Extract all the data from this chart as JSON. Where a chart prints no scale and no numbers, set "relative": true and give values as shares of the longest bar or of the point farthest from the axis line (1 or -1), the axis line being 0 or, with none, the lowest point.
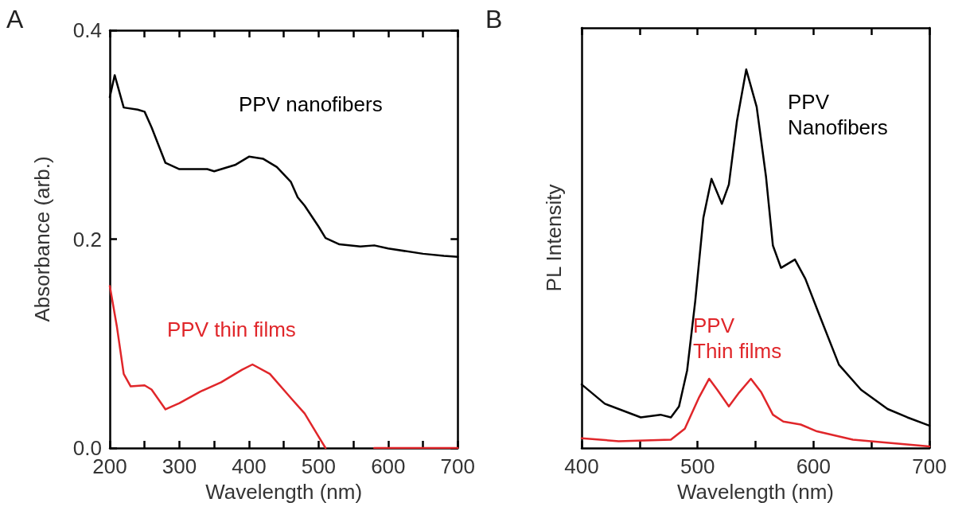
{
  "chart_data": [
    {
      "type": "line",
      "annotations": [
        "A"
      ],
      "xlabel": "Wavelength (nm)",
      "ylabel": "Absorbance (arb.)",
      "xlim": [
        200,
        700
      ],
      "xticks": [
        200,
        {
          "value": 250,
          "label": null
        },
        300,
        {
          "value": 350,
          "label": null
        },
        400,
        {
          "value": 450,
          "label": null
        },
        500,
        {
          "value": 550,
          "label": null
        },
        600,
        {
          "value": 650,
          "label": null
        },
        700
      ],
      "ylim": [
        0,
        0.4
      ],
      "yticks": [
        {
          "value": 0,
          "label": "0.0"
        },
        {
          "value": 0.2,
          "label": "0.2"
        },
        {
          "value": 0.4,
          "label": "0.4"
        }
      ],
      "grid": false,
      "legend": false,
      "marker": "none",
      "line_style": "solid",
      "series": [
        {
          "name": "PPV nanofibers",
          "color": "#000000",
          "x": [
            200,
            207,
            220,
            240,
            250,
            260,
            280,
            300,
            340,
            350,
            380,
            400,
            420,
            440,
            460,
            470,
            480,
            500,
            510,
            530,
            560,
            580,
            600,
            650,
            680,
            700
          ],
          "values": [
            0.336,
            0.357,
            0.326,
            0.324,
            0.322,
            0.307,
            0.273,
            0.267,
            0.267,
            0.265,
            0.271,
            0.279,
            0.277,
            0.269,
            0.255,
            0.24,
            0.232,
            0.212,
            0.201,
            0.195,
            0.193,
            0.194,
            0.191,
            0.186,
            0.184,
            0.183
          ]
        },
        {
          "name": "PPV thin films",
          "color": "#e0262a",
          "x": [
            200,
            210,
            220,
            230,
            250,
            260,
            280,
            300,
            330,
            360,
            390,
            405,
            430,
            460,
            480,
            500,
            510,
            520,
            560,
            580,
            600,
            650,
            700
          ],
          "values": [
            0.155,
            0.117,
            0.071,
            0.059,
            0.06,
            0.056,
            0.037,
            0.043,
            0.054,
            0.063,
            0.075,
            0.08,
            0.071,
            0.048,
            0.033,
            0.011,
            0,
            null,
            null,
            0,
            0,
            0,
            0
          ]
        }
      ]
    },
    {
      "type": "line",
      "annotations": [
        "B"
      ],
      "xlabel": "Wavelength (nm)",
      "ylabel": "PL Intensity",
      "relative": true,
      "xlim": [
        400,
        700
      ],
      "xticks": [
        400,
        {
          "value": 450,
          "label": null
        },
        500,
        {
          "value": 550,
          "label": null
        },
        600,
        {
          "value": 650,
          "label": null
        },
        700
      ],
      "grid": false,
      "legend": false,
      "marker": "none",
      "line_style": "solid",
      "series": [
        {
          "name": "PPV Nanofibers",
          "color": "#000000",
          "x": [
            400,
            420,
            451,
            468,
            477,
            484,
            491,
            498,
            505,
            512,
            521,
            527,
            534,
            542,
            551,
            559,
            565,
            572,
            584,
            593,
            605,
            622,
            641,
            664,
            681,
            700
          ],
          "values": [
            0.168,
            0.117,
            0.081,
            0.088,
            0.081,
            0.11,
            0.205,
            0.388,
            0.608,
            0.711,
            0.645,
            0.696,
            0.864,
            1,
            0.901,
            0.718,
            0.535,
            0.476,
            0.498,
            0.447,
            0.352,
            0.22,
            0.154,
            0.103,
            0.081,
            0.059
          ]
        },
        {
          "name": "PPV Thin films",
          "color": "#e0262a",
          "x": [
            400,
            432,
            477,
            489,
            501,
            510,
            517,
            527,
            536,
            546,
            555,
            565,
            574,
            589,
            603,
            634,
            700
          ],
          "values": [
            0.026,
            0.018,
            0.022,
            0.051,
            0.132,
            0.183,
            0.154,
            0.11,
            0.147,
            0.183,
            0.147,
            0.088,
            0.07,
            0.062,
            0.044,
            0.022,
            0.004
          ]
        }
      ]
    }
  ]
}
